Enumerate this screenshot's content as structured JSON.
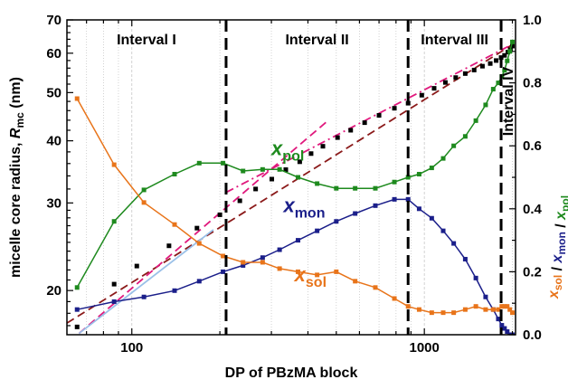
{
  "chart_data": {
    "type": "scatter",
    "xlabel": "DP of PBzMA block",
    "ylabel_left": {
      "main": "micelle core radius, ",
      "sym": "R",
      "sub": "mc",
      "unit": " (nm)"
    },
    "ylabel_right": {
      "parts": [
        {
          "sym": "x",
          "sub": "sol",
          "color": "#e8741a"
        },
        {
          "sym": " / ",
          "sub": "",
          "color": "#000000"
        },
        {
          "sym": "x",
          "sub": "mon",
          "color": "#1b1f8a"
        },
        {
          "sym": " / ",
          "sub": "",
          "color": "#000000"
        },
        {
          "sym": "x",
          "sub": "pol",
          "color": "#1e8a1e"
        }
      ]
    },
    "x_scale": "log",
    "xlim": [
      60,
      2050
    ],
    "x_ticks": [
      100,
      1000
    ],
    "x_tick_labels": [
      "100",
      "1000"
    ],
    "y_left_scale": "log",
    "y_left_lim": [
      16.3,
      70
    ],
    "y_left_ticks": [
      20,
      30,
      40,
      50,
      60,
      70
    ],
    "y_left_tick_labels": [
      "20",
      "30",
      "40",
      "50",
      "60",
      "70"
    ],
    "y_right_lim": [
      0,
      1.0
    ],
    "y_right_ticks": [
      0.0,
      0.2,
      0.4,
      0.6,
      0.8,
      1.0
    ],
    "y_right_tick_labels": [
      "0.0",
      "0.2",
      "0.4",
      "0.6",
      "0.8",
      "1.0"
    ],
    "grid": "vertical",
    "interval_boundaries": [
      210,
      880,
      1830
    ],
    "interval_labels": [
      {
        "text": "Interval I",
        "x_range": [
          60,
          210
        ]
      },
      {
        "text": "Interval II",
        "x_range": [
          210,
          880
        ]
      },
      {
        "text": "Interval III",
        "x_range": [
          880,
          1830
        ]
      },
      {
        "text": "Interval IV",
        "x_range": [
          1830,
          2050
        ],
        "vertical": true
      }
    ],
    "series": [
      {
        "name": "R_mc",
        "axis": "left",
        "color": "#000000",
        "marker": "square",
        "x": [
          65,
          87,
          104,
          134,
          167,
          200,
          234,
          265,
          301,
          336,
          375,
          410,
          450,
          505,
          560,
          625,
          700,
          790,
          880,
          980,
          1080,
          1180,
          1280,
          1380,
          1480,
          1580,
          1680,
          1760,
          1830,
          1880,
          1930,
          1970,
          2000
        ],
        "y": [
          16.9,
          20.6,
          22.4,
          24.6,
          26.7,
          28.4,
          30.3,
          32.0,
          33.5,
          35.0,
          36.3,
          37.7,
          39.0,
          40.6,
          42.0,
          43.5,
          45.0,
          46.5,
          47.6,
          49.4,
          51.0,
          52.4,
          53.6,
          54.6,
          55.5,
          56.5,
          57.2,
          58.0,
          58.8,
          59.4,
          60.3,
          61.0,
          62.0
        ]
      },
      {
        "name": "x_pol",
        "label": {
          "sym": "x",
          "sub": "pol"
        },
        "axis": "right",
        "color": "#1e8a1e",
        "marker": "square",
        "x": [
          65,
          87,
          110,
          140,
          170,
          205,
          240,
          280,
          320,
          370,
          430,
          500,
          580,
          680,
          790,
          880,
          960,
          1060,
          1160,
          1260,
          1380,
          1500,
          1620,
          1720,
          1790,
          1840,
          1880,
          1920,
          1960,
          2000
        ],
        "y": [
          0.15,
          0.36,
          0.46,
          0.51,
          0.545,
          0.545,
          0.52,
          0.525,
          0.525,
          0.5,
          0.48,
          0.465,
          0.465,
          0.465,
          0.485,
          0.5,
          0.51,
          0.53,
          0.56,
          0.6,
          0.63,
          0.68,
          0.73,
          0.78,
          0.8,
          0.82,
          0.84,
          0.87,
          0.9,
          0.93
        ]
      },
      {
        "name": "x_mon",
        "label": {
          "sym": "x",
          "sub": "mon"
        },
        "axis": "right",
        "color": "#1b1f8a",
        "marker": "square",
        "x": [
          65,
          87,
          110,
          140,
          170,
          205,
          240,
          280,
          320,
          370,
          430,
          500,
          580,
          680,
          790,
          880,
          960,
          1060,
          1160,
          1260,
          1380,
          1500,
          1620,
          1720,
          1790,
          1840,
          1880,
          1920,
          1960,
          2000
        ],
        "y": [
          0.08,
          0.105,
          0.12,
          0.14,
          0.17,
          0.2,
          0.22,
          0.245,
          0.27,
          0.3,
          0.33,
          0.36,
          0.385,
          0.41,
          0.43,
          0.43,
          0.4,
          0.37,
          0.33,
          0.29,
          0.24,
          0.18,
          0.12,
          0.08,
          0.05,
          0.03,
          0.02,
          0.01,
          0.0,
          0.0
        ]
      },
      {
        "name": "x_sol",
        "label": {
          "sym": "x",
          "sub": "sol"
        },
        "axis": "right",
        "color": "#e8741a",
        "marker": "square",
        "x": [
          65,
          87,
          110,
          140,
          170,
          205,
          240,
          280,
          320,
          370,
          430,
          500,
          580,
          680,
          790,
          880,
          960,
          1060,
          1160,
          1260,
          1380,
          1500,
          1620,
          1720,
          1790,
          1840,
          1880,
          1920,
          1960,
          2000
        ],
        "y": [
          0.75,
          0.54,
          0.42,
          0.35,
          0.29,
          0.25,
          0.23,
          0.23,
          0.21,
          0.2,
          0.19,
          0.2,
          0.17,
          0.15,
          0.115,
          0.09,
          0.08,
          0.07,
          0.07,
          0.07,
          0.08,
          0.09,
          0.08,
          0.08,
          0.08,
          0.09,
          0.09,
          0.09,
          0.08,
          0.07
        ]
      }
    ],
    "fit_lines": [
      {
        "color": "#8b1a1a",
        "style": "dash",
        "axis": "left",
        "x": [
          60,
          2050
        ],
        "y": [
          17.2,
          63.0
        ]
      },
      {
        "color": "#e0197d",
        "style": "dash",
        "axis": "left",
        "x": [
          66,
          470
        ],
        "y": [
          16.4,
          44.0
        ]
      },
      {
        "color": "#e0197d",
        "style": "dashdot",
        "axis": "left",
        "x": [
          210,
          2050
        ],
        "y": [
          31.5,
          63.0
        ]
      },
      {
        "color": "#9ac0e8",
        "style": "solid",
        "axis": "left",
        "x": [
          66,
          190
        ],
        "y": [
          16.4,
          26.5
        ]
      }
    ]
  }
}
